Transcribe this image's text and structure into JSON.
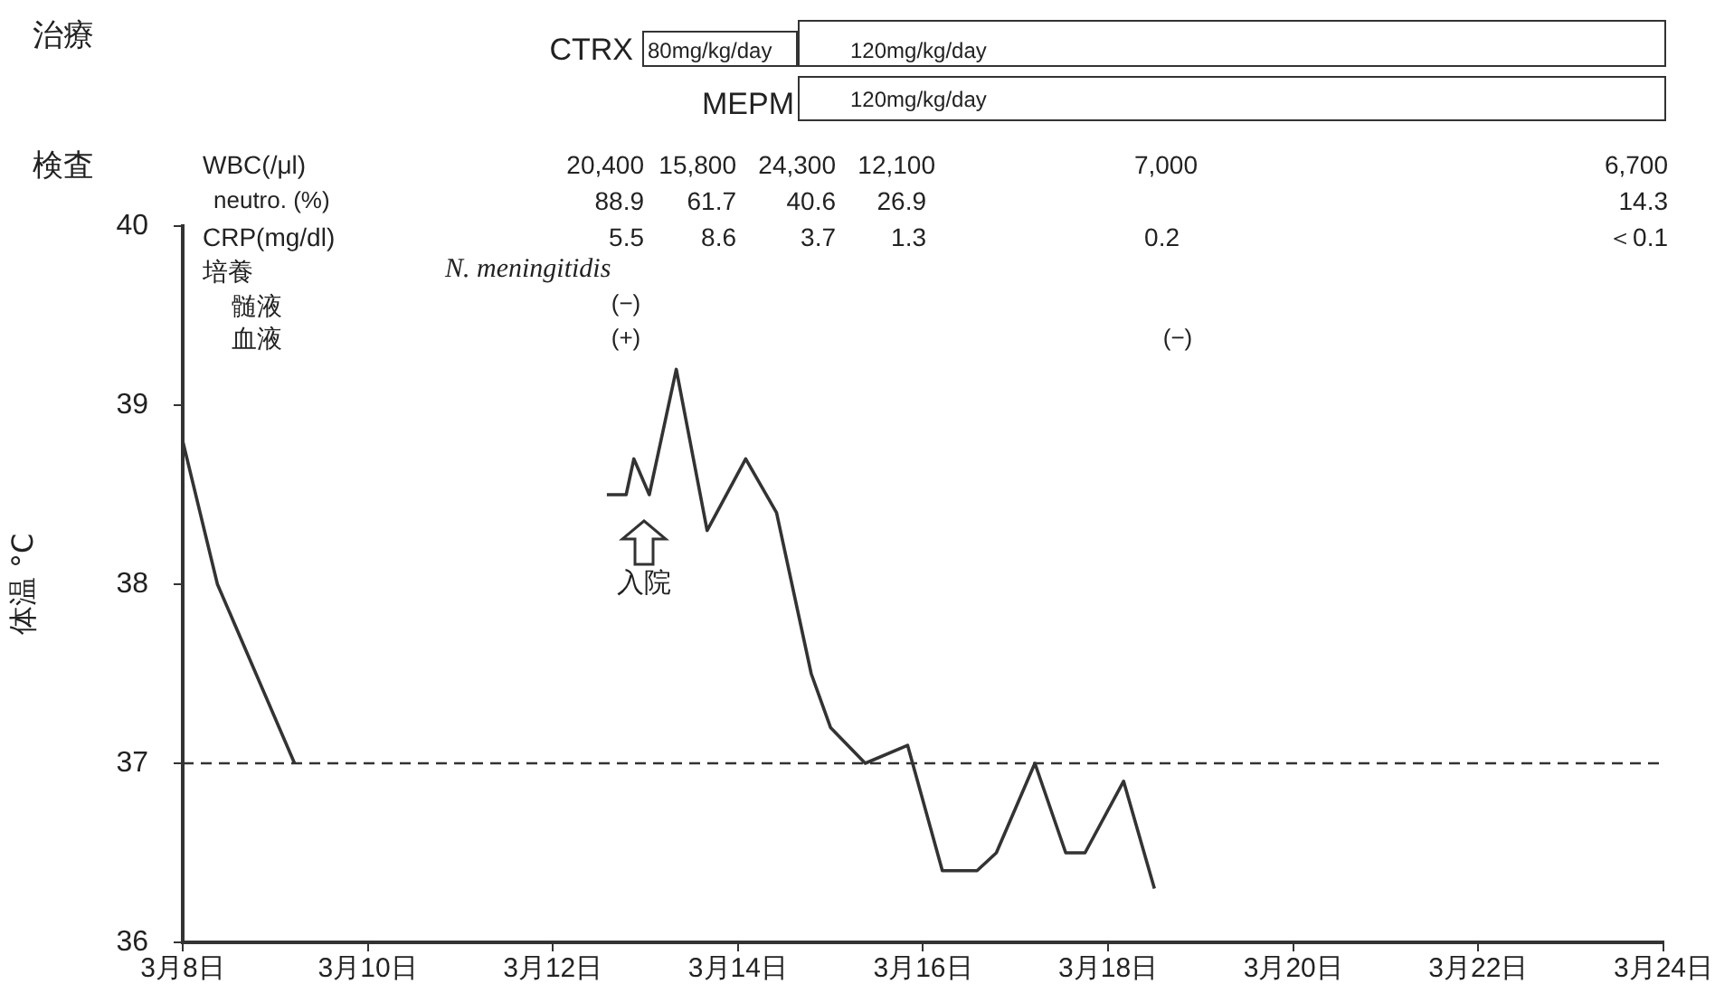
{
  "chart_data": {
    "type": "line",
    "ylabel": "体温 °C",
    "x": [
      "--03-08",
      "--03-08T09:00",
      "--03-09T05:00",
      "--03-11",
      "--03-12T14:00",
      "--03-12T19:00",
      "--03-12T21:00",
      "--03-13T01:00",
      "--03-13T08:00",
      "--03-13T16:00",
      "--03-14T02:00",
      "--03-14T10:00",
      "--03-14T19:00",
      "--03-15",
      "--03-15T09:00",
      "--03-15T20:00",
      "--03-16T05:00",
      "--03-16T14:00",
      "--03-16T19:00",
      "--03-17T05:00",
      "--03-17T13:00",
      "--03-17T18:00",
      "--03-18T04:00",
      "--03-18T12:00"
    ],
    "series": [
      {
        "color": "#333333",
        "values": [
          38.8,
          38.0,
          37.0,
          null,
          38.5,
          38.5,
          38.7,
          38.5,
          39.2,
          38.3,
          38.7,
          38.4,
          37.5,
          37.2,
          37.0,
          37.1,
          36.4,
          36.4,
          36.5,
          37.0,
          36.5,
          36.5,
          36.9,
          36.3
        ]
      }
    ],
    "xlim": [
      "--03-08",
      "--03-24"
    ],
    "xticks": [
      {
        "value": "--03-08",
        "label": "3月8日"
      },
      {
        "value": "--03-10",
        "label": "3月10日"
      },
      {
        "value": "--03-12",
        "label": "3月12日"
      },
      {
        "value": "--03-14",
        "label": "3月14日"
      },
      {
        "value": "--03-16",
        "label": "3月16日"
      },
      {
        "value": "--03-18",
        "label": "3月18日"
      },
      {
        "value": "--03-20",
        "label": "3月20日"
      },
      {
        "value": "--03-22",
        "label": "3月22日"
      },
      {
        "value": "--03-24",
        "label": "3月24日"
      }
    ],
    "ylim": [
      36,
      40
    ],
    "yticks": [
      36,
      37,
      38,
      39,
      40
    ],
    "grid": false,
    "legend": false,
    "marker": "none",
    "line_style": "solid",
    "ref_lines": [
      {
        "axis": "y",
        "value": 37,
        "color": "#333333",
        "line_style": "dashed"
      }
    ],
    "annotations": [
      "治療",
      "CTRX",
      "80mg/kg/day",
      "120mg/kg/day",
      "MEPM",
      "120mg/kg/day",
      "検査",
      "WBC(/μl)",
      "20,400",
      "15,800",
      "24,300",
      "12,100",
      "7,000",
      "6,700",
      "neutro. (%)",
      "88.9",
      "61.7",
      "40.6",
      "26.9",
      "14.3",
      "CRP(mg/dl)",
      "5.5",
      "8.6",
      "3.7",
      "1.3",
      "0.2",
      "＜0.1",
      "培養",
      "N. meningitidis",
      "髄液",
      "(−)",
      "血液",
      "(+)",
      "(−)",
      "入院"
    ]
  }
}
